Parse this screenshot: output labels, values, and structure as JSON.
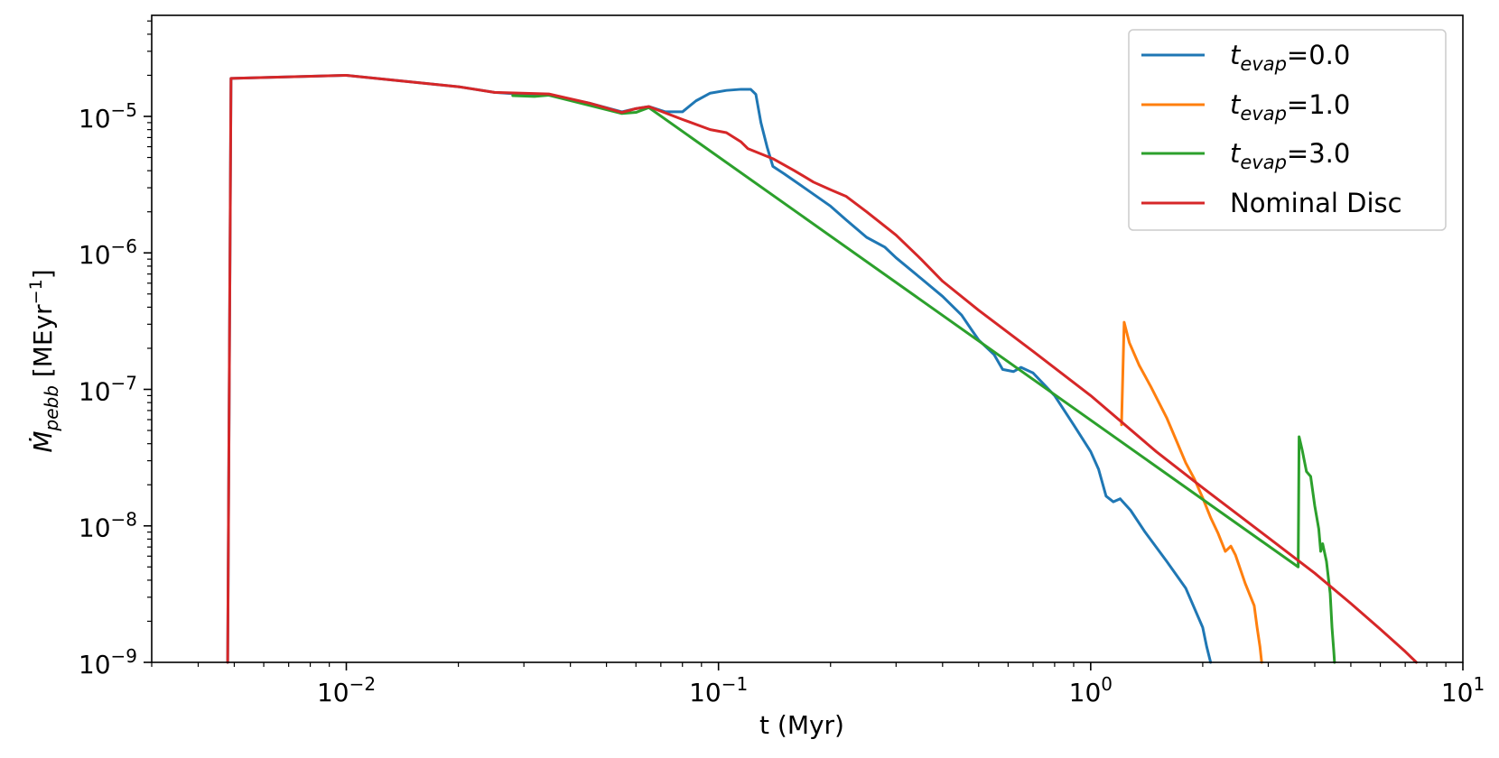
{
  "chart_data": {
    "type": "line",
    "x_scale": "log",
    "y_scale": "log",
    "xlim": [
      0.003,
      10
    ],
    "ylim": [
      1e-09,
      5.5e-05
    ],
    "xlabel": "t (Myr)",
    "ylabel": {
      "main": "Ṁ",
      "sub": "pebb",
      "unit_prefix": " [MEyr",
      "unit_sup": "−1",
      "unit_suffix": "]"
    },
    "x_ticks": [
      {
        "value": 0.01,
        "base": "10",
        "exp": "−2"
      },
      {
        "value": 0.1,
        "base": "10",
        "exp": "−1"
      },
      {
        "value": 1,
        "base": "10",
        "exp": "0"
      },
      {
        "value": 10,
        "base": "10",
        "exp": "1"
      }
    ],
    "y_ticks": [
      {
        "value": 1e-09,
        "base": "10",
        "exp": "−9"
      },
      {
        "value": 1e-08,
        "base": "10",
        "exp": "−8"
      },
      {
        "value": 1e-07,
        "base": "10",
        "exp": "−7"
      },
      {
        "value": 1e-06,
        "base": "10",
        "exp": "−6"
      },
      {
        "value": 1e-05,
        "base": "10",
        "exp": "−5"
      }
    ],
    "grid": false,
    "legend_position": "top-right",
    "series": [
      {
        "name": "t_evap=0.0",
        "label": {
          "t": "t",
          "sub": "evap",
          "value": "=0.0"
        },
        "color": "#1f77b4",
        "points": [
          [
            0.0048,
            1e-09
          ],
          [
            0.0049,
            1.9e-05
          ],
          [
            0.01,
            2e-05
          ],
          [
            0.02,
            1.65e-05
          ],
          [
            0.025,
            1.5e-05
          ],
          [
            0.03,
            1.45e-05
          ],
          [
            0.035,
            1.45e-05
          ],
          [
            0.045,
            1.25e-05
          ],
          [
            0.055,
            1.08e-05
          ],
          [
            0.06,
            1.14e-05
          ],
          [
            0.065,
            1.18e-05
          ],
          [
            0.072,
            1.08e-05
          ],
          [
            0.08,
            1.08e-05
          ],
          [
            0.087,
            1.3e-05
          ],
          [
            0.095,
            1.48e-05
          ],
          [
            0.105,
            1.55e-05
          ],
          [
            0.115,
            1.58e-05
          ],
          [
            0.122,
            1.58e-05
          ],
          [
            0.126,
            1.45e-05
          ],
          [
            0.13,
            9e-06
          ],
          [
            0.135,
            6e-06
          ],
          [
            0.14,
            4.3e-06
          ],
          [
            0.15,
            3.8e-06
          ],
          [
            0.17,
            3e-06
          ],
          [
            0.2,
            2.2e-06
          ],
          [
            0.22,
            1.75e-06
          ],
          [
            0.25,
            1.3e-06
          ],
          [
            0.28,
            1.1e-06
          ],
          [
            0.3,
            9.2e-07
          ],
          [
            0.35,
            6.5e-07
          ],
          [
            0.4,
            4.8e-07
          ],
          [
            0.45,
            3.5e-07
          ],
          [
            0.48,
            2.7e-07
          ],
          [
            0.5,
            2.3e-07
          ],
          [
            0.55,
            1.8e-07
          ],
          [
            0.58,
            1.4e-07
          ],
          [
            0.62,
            1.35e-07
          ],
          [
            0.65,
            1.45e-07
          ],
          [
            0.7,
            1.32e-07
          ],
          [
            0.8,
            9e-08
          ],
          [
            0.9,
            5.5e-08
          ],
          [
            1.0,
            3.5e-08
          ],
          [
            1.05,
            2.6e-08
          ],
          [
            1.1,
            1.65e-08
          ],
          [
            1.15,
            1.5e-08
          ],
          [
            1.2,
            1.58e-08
          ],
          [
            1.28,
            1.3e-08
          ],
          [
            1.4,
            9e-09
          ],
          [
            1.6,
            5.5e-09
          ],
          [
            1.8,
            3.5e-09
          ],
          [
            2.0,
            1.8e-09
          ],
          [
            2.05,
            1.3e-09
          ],
          [
            2.1,
            1e-09
          ]
        ]
      },
      {
        "name": "t_evap=1.0",
        "label": {
          "t": "t",
          "sub": "evap",
          "value": "=1.0"
        },
        "color": "#ff7f0e",
        "points": [
          [
            1.21,
            5.5e-08
          ],
          [
            1.22,
            1.3e-07
          ],
          [
            1.23,
            3.1e-07
          ],
          [
            1.27,
            2.2e-07
          ],
          [
            1.35,
            1.5e-07
          ],
          [
            1.45,
            1.05e-07
          ],
          [
            1.6,
            6.2e-08
          ],
          [
            1.7,
            4.2e-08
          ],
          [
            1.8,
            2.9e-08
          ],
          [
            1.9,
            2.2e-08
          ],
          [
            2.0,
            1.6e-08
          ],
          [
            2.1,
            1.15e-08
          ],
          [
            2.2,
            8.8e-09
          ],
          [
            2.3,
            6.5e-09
          ],
          [
            2.38,
            7.1e-09
          ],
          [
            2.45,
            6.1e-09
          ],
          [
            2.6,
            3.8e-09
          ],
          [
            2.75,
            2.6e-09
          ],
          [
            2.8,
            1.8e-09
          ],
          [
            2.85,
            1.3e-09
          ],
          [
            2.88,
            1e-09
          ]
        ]
      },
      {
        "name": "t_evap=3.0",
        "label": {
          "t": "t",
          "sub": "evap",
          "value": "=3.0"
        },
        "color": "#2ca02c",
        "points": [
          [
            0.028,
            1.42e-05
          ],
          [
            0.032,
            1.4e-05
          ],
          [
            0.035,
            1.43e-05
          ],
          [
            0.055,
            1.05e-05
          ],
          [
            0.06,
            1.07e-05
          ],
          [
            0.065,
            1.16e-05
          ],
          [
            3.61,
            5e-09
          ],
          [
            3.62,
            1.5e-08
          ],
          [
            3.63,
            4.5e-08
          ],
          [
            3.7,
            3.6e-08
          ],
          [
            3.8,
            2.5e-08
          ],
          [
            3.9,
            2.3e-08
          ],
          [
            4.0,
            1.4e-08
          ],
          [
            4.1,
            9.5e-09
          ],
          [
            4.15,
            6.5e-09
          ],
          [
            4.2,
            7.4e-09
          ],
          [
            4.3,
            5.5e-09
          ],
          [
            4.4,
            3.2e-09
          ],
          [
            4.45,
            1.8e-09
          ],
          [
            4.5,
            1.2e-09
          ],
          [
            4.52,
            1e-09
          ]
        ]
      },
      {
        "name": "Nominal Disc",
        "label": {
          "t": "",
          "sub": "",
          "value": "Nominal Disc"
        },
        "color": "#d62728",
        "points": [
          [
            0.0048,
            1e-09
          ],
          [
            0.0049,
            1.9e-05
          ],
          [
            0.01,
            2e-05
          ],
          [
            0.02,
            1.65e-05
          ],
          [
            0.025,
            1.5e-05
          ],
          [
            0.035,
            1.46e-05
          ],
          [
            0.045,
            1.25e-05
          ],
          [
            0.055,
            1.07e-05
          ],
          [
            0.06,
            1.14e-05
          ],
          [
            0.065,
            1.18e-05
          ],
          [
            0.08,
            9.5e-06
          ],
          [
            0.095,
            8e-06
          ],
          [
            0.105,
            7.6e-06
          ],
          [
            0.115,
            6.5e-06
          ],
          [
            0.12,
            5.8e-06
          ],
          [
            0.14,
            4.9e-06
          ],
          [
            0.16,
            4e-06
          ],
          [
            0.18,
            3.3e-06
          ],
          [
            0.2,
            2.9e-06
          ],
          [
            0.22,
            2.6e-06
          ],
          [
            0.25,
            2e-06
          ],
          [
            0.3,
            1.35e-06
          ],
          [
            0.35,
            9e-07
          ],
          [
            0.4,
            6.2e-07
          ],
          [
            0.5,
            3.8e-07
          ],
          [
            0.7,
            1.9e-07
          ],
          [
            1.0,
            9e-08
          ],
          [
            1.5,
            3.5e-08
          ],
          [
            2.0,
            1.9e-08
          ],
          [
            3.0,
            8.2e-09
          ],
          [
            4.0,
            4.5e-09
          ],
          [
            5.0,
            2.7e-09
          ],
          [
            6.0,
            1.75e-09
          ],
          [
            7.0,
            1.2e-09
          ],
          [
            7.5,
            1e-09
          ]
        ]
      }
    ]
  }
}
